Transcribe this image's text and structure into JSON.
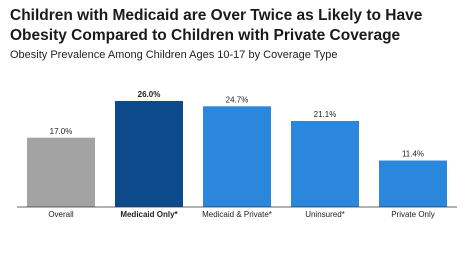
{
  "chart_data": {
    "type": "bar",
    "title": "Children with Medicaid are Over Twice as Likely to Have Obesity Compared to Children with Private Coverage",
    "subtitle": "Obesity Prevalence Among Children Ages 10-17 by Coverage Type",
    "categories": [
      "Overall",
      "Medicaid Only*",
      "Medicaid & Private*",
      "Uninsured*",
      "Private Only"
    ],
    "values": [
      17.0,
      26.0,
      24.7,
      21.1,
      11.4
    ],
    "value_labels": [
      "17.0%",
      "26.0%",
      "24.7%",
      "21.1%",
      "11.4%"
    ],
    "colors": [
      "#a3a3a3",
      "#0d4a8c",
      "#2a87dc",
      "#2a87dc",
      "#2a87dc"
    ]
  }
}
